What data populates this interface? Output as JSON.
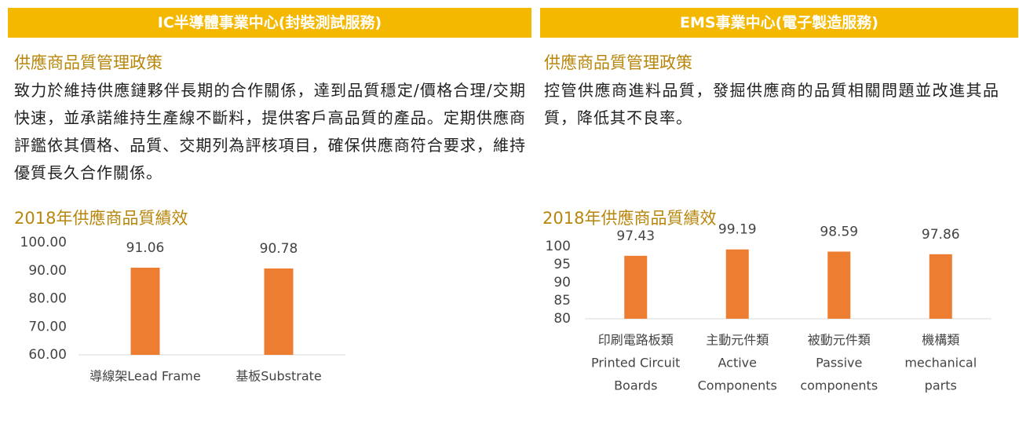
{
  "panels": [
    {
      "header": "IC半導體事業中心(封裝測試服務)",
      "subtitle": "供應商品質管理政策",
      "body": "致力於維持供應鏈夥伴長期的合作關係，達到品質穩定/價格合理/交期快速，並承諾維持生產線不斷料，提供客戶高品質的產品。定期供應商評鑑依其價格、品質、交期列為評核項目，確保供應商符合要求，維持優質長久合作關係。",
      "chart_title": "2018年供應商品質績效",
      "chart": {
        "type": "bar",
        "color": "#ed7d31",
        "categories": [
          [
            "導線架Lead Frame"
          ],
          [
            "基板Substrate"
          ]
        ],
        "values": [
          91.06,
          90.78
        ],
        "ylim": [
          60,
          100
        ],
        "yticks": [
          {
            "value": 60,
            "label": "60.00"
          },
          {
            "value": 70,
            "label": "70.00"
          },
          {
            "value": 80,
            "label": "80.00"
          },
          {
            "value": 90,
            "label": "90.00"
          },
          {
            "value": 100,
            "label": "100.00"
          }
        ]
      }
    },
    {
      "header": "EMS事業中心(電子製造服務)",
      "subtitle": "供應商品質管理政策",
      "body": "控管供應商進料品質，發掘供應商的品質相關問題並改進其品質，降低其不良率。",
      "chart_title": "2018年供應商品質績效",
      "chart": {
        "type": "bar",
        "color": "#ed7d31",
        "categories": [
          [
            "印刷電路板類",
            "Printed Circuit",
            "Boards"
          ],
          [
            "主動元件類",
            "Active",
            "Components"
          ],
          [
            "被動元件類",
            "Passive",
            "components"
          ],
          [
            "機構類",
            "mechanical",
            "parts"
          ]
        ],
        "values": [
          97.43,
          99.19,
          98.59,
          97.86
        ],
        "ylim": [
          80,
          100
        ],
        "yticks": [
          80,
          85,
          90,
          95,
          100
        ]
      }
    }
  ]
}
